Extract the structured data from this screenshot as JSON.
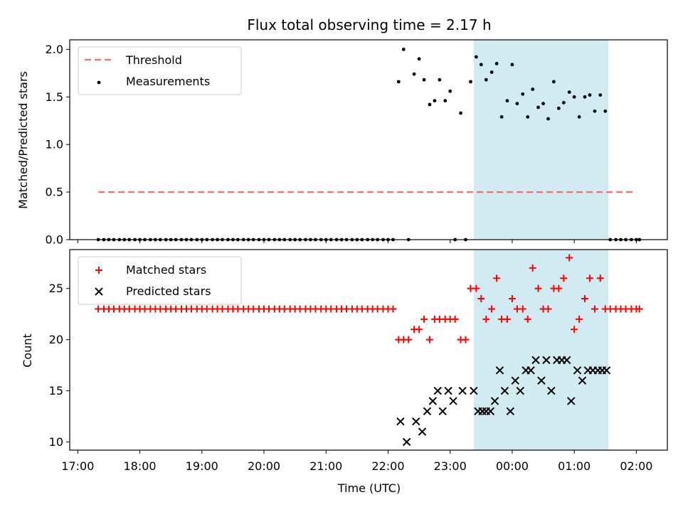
{
  "chart_data": [
    {
      "panel": "top",
      "type": "scatter",
      "title": "Flux total observing time = 2.17 h",
      "ylabel": "Matched/Predicted stars",
      "xlabel": "",
      "ylim": [
        0,
        2.1
      ],
      "yticks": [
        "0.0",
        "0.5",
        "1.0",
        "1.5",
        "2.0"
      ],
      "ytick_values": [
        0,
        0.5,
        1.0,
        1.5,
        2.0
      ],
      "grid": false,
      "legend_position": "top-left",
      "shaded_interval": {
        "start_h": 23.38,
        "end_h": 25.55,
        "color": "#add8e6"
      },
      "threshold": {
        "name": "Threshold",
        "value": 0.5,
        "x_start_h": 17.33,
        "x_end_h": 26.0,
        "color": "#ff6b6b"
      },
      "series": [
        {
          "name": "Measurements",
          "marker": "dot",
          "color": "#000000",
          "x_h": [
            17.33,
            17.42,
            17.5,
            17.58,
            17.67,
            17.75,
            17.83,
            17.92,
            18.0,
            18.08,
            18.17,
            18.25,
            18.33,
            18.42,
            18.5,
            18.58,
            18.67,
            18.75,
            18.83,
            18.92,
            19.0,
            19.08,
            19.17,
            19.25,
            19.33,
            19.42,
            19.5,
            19.58,
            19.67,
            19.75,
            19.83,
            19.92,
            20.0,
            20.08,
            20.17,
            20.25,
            20.33,
            20.42,
            20.5,
            20.58,
            20.67,
            20.75,
            20.83,
            20.92,
            21.0,
            21.08,
            21.17,
            21.25,
            21.33,
            21.42,
            21.5,
            21.58,
            21.67,
            21.75,
            21.83,
            21.92,
            22.0,
            22.08,
            22.17,
            22.25,
            22.33,
            22.42,
            22.5,
            22.58,
            22.67,
            22.75,
            22.83,
            22.92,
            23.0,
            23.08,
            23.17,
            23.25,
            23.33,
            23.42,
            23.5,
            23.58,
            23.67,
            23.75,
            23.83,
            23.92,
            24.0,
            24.08,
            24.17,
            24.25,
            24.33,
            24.42,
            24.5,
            24.58,
            24.67,
            24.75,
            24.83,
            24.92,
            25.0,
            25.08,
            25.17,
            25.25,
            25.33,
            25.42,
            25.5,
            25.58,
            25.67,
            25.75,
            25.83,
            25.92,
            26.0,
            26.05
          ],
          "y": [
            0,
            0,
            0,
            0,
            0,
            0,
            0,
            0,
            0,
            0,
            0,
            0,
            0,
            0,
            0,
            0,
            0,
            0,
            0,
            0,
            0,
            0,
            0,
            0,
            0,
            0,
            0,
            0,
            0,
            0,
            0,
            0,
            0,
            0,
            0,
            0,
            0,
            0,
            0,
            0,
            0,
            0,
            0,
            0,
            0,
            0,
            0,
            0,
            0,
            0,
            0,
            0,
            0,
            0,
            0,
            0,
            0,
            0,
            1.66,
            2.0,
            0,
            1.74,
            1.9,
            1.68,
            1.42,
            1.46,
            1.68,
            1.46,
            1.56,
            0,
            1.33,
            0,
            1.66,
            1.92,
            1.84,
            1.68,
            1.76,
            1.85,
            1.29,
            1.46,
            1.84,
            1.43,
            1.53,
            1.29,
            1.58,
            1.39,
            1.43,
            1.27,
            1.66,
            1.38,
            1.44,
            1.55,
            1.5,
            1.29,
            1.5,
            1.52,
            1.35,
            1.52,
            1.35,
            0,
            0,
            0,
            0,
            0,
            0,
            0
          ]
        }
      ]
    },
    {
      "panel": "bottom",
      "type": "scatter",
      "title": "",
      "xlabel": "Time (UTC)",
      "ylabel": "Count",
      "ylim": [
        9.2,
        28.8
      ],
      "yticks": [
        "10",
        "15",
        "20",
        "25"
      ],
      "ytick_values": [
        10,
        15,
        20,
        25
      ],
      "xticks": [
        "17:00",
        "18:00",
        "19:00",
        "20:00",
        "21:00",
        "22:00",
        "23:00",
        "00:00",
        "01:00",
        "02:00"
      ],
      "xtick_values_h": [
        17,
        18,
        19,
        20,
        21,
        22,
        23,
        24,
        25,
        26
      ],
      "xlim_h": [
        16.87,
        26.5
      ],
      "grid": false,
      "legend_position": "top-left",
      "shaded_interval": {
        "start_h": 23.38,
        "end_h": 25.55,
        "color": "#add8e6"
      },
      "series": [
        {
          "name": "Matched stars",
          "marker": "plus",
          "color": "#ff0000",
          "x_h": [
            17.33,
            17.42,
            17.5,
            17.58,
            17.67,
            17.75,
            17.83,
            17.92,
            18.0,
            18.08,
            18.17,
            18.25,
            18.33,
            18.42,
            18.5,
            18.58,
            18.67,
            18.75,
            18.83,
            18.92,
            19.0,
            19.08,
            19.17,
            19.25,
            19.33,
            19.42,
            19.5,
            19.58,
            19.67,
            19.75,
            19.83,
            19.92,
            20.0,
            20.08,
            20.17,
            20.25,
            20.33,
            20.42,
            20.5,
            20.58,
            20.67,
            20.75,
            20.83,
            20.92,
            21.0,
            21.08,
            21.17,
            21.25,
            21.33,
            21.42,
            21.5,
            21.58,
            21.67,
            21.75,
            21.83,
            21.92,
            22.0,
            22.08,
            22.17,
            22.25,
            22.33,
            22.42,
            22.5,
            22.58,
            22.67,
            22.75,
            22.83,
            22.92,
            23.0,
            23.08,
            23.17,
            23.25,
            23.33,
            23.42,
            23.5,
            23.58,
            23.67,
            23.75,
            23.83,
            23.92,
            24.0,
            24.08,
            24.17,
            24.25,
            24.33,
            24.42,
            24.5,
            24.58,
            24.67,
            24.75,
            24.83,
            24.92,
            25.0,
            25.08,
            25.17,
            25.25,
            25.33,
            25.42,
            25.5,
            25.58,
            25.67,
            25.75,
            25.83,
            25.92,
            26.0,
            26.05
          ],
          "y": [
            23,
            23,
            23,
            23,
            23,
            23,
            23,
            23,
            23,
            23,
            23,
            23,
            23,
            23,
            23,
            23,
            23,
            23,
            23,
            23,
            23,
            23,
            23,
            23,
            23,
            23,
            23,
            23,
            23,
            23,
            23,
            23,
            23,
            23,
            23,
            23,
            23,
            23,
            23,
            23,
            23,
            23,
            23,
            23,
            23,
            23,
            23,
            23,
            23,
            23,
            23,
            23,
            23,
            23,
            23,
            23,
            23,
            23,
            20,
            20,
            20,
            21,
            21,
            22,
            20,
            22,
            22,
            22,
            22,
            22,
            20,
            20,
            25,
            25,
            24,
            22,
            23,
            26,
            22,
            22,
            24,
            23,
            23,
            22,
            27,
            25,
            23,
            23,
            25,
            25,
            26,
            28,
            21,
            22,
            24,
            26,
            23,
            26,
            23,
            23,
            23,
            23,
            23,
            23,
            23,
            23
          ]
        },
        {
          "name": "Predicted stars",
          "marker": "x",
          "color": "#000000",
          "x_h": [
            22.2,
            22.3,
            22.45,
            22.55,
            22.63,
            22.72,
            22.8,
            22.88,
            22.97,
            23.05,
            23.2,
            23.38,
            23.45,
            23.52,
            23.58,
            23.65,
            23.72,
            23.8,
            23.88,
            23.97,
            24.05,
            24.13,
            24.22,
            24.3,
            24.38,
            24.47,
            24.55,
            24.63,
            24.72,
            24.8,
            24.88,
            24.95,
            25.05,
            25.13,
            25.22,
            25.3,
            25.38,
            25.45,
            25.52
          ],
          "y": [
            12,
            10,
            12,
            11,
            13,
            14,
            15,
            13,
            15,
            14,
            15,
            15,
            13,
            13,
            13,
            13,
            14,
            17,
            15,
            13,
            16,
            15,
            17,
            17,
            18,
            16,
            18,
            15,
            18,
            18,
            18,
            14,
            17,
            16,
            17,
            17,
            17,
            17,
            17
          ]
        }
      ]
    }
  ]
}
